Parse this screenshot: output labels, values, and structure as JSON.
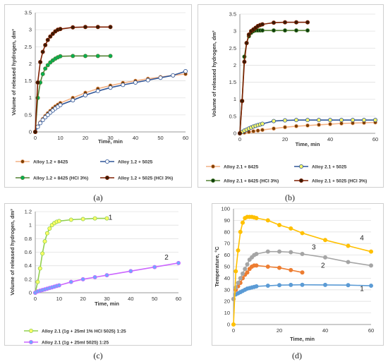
{
  "chart_data": [
    {
      "id": "a",
      "type": "line",
      "caption": "(a)",
      "xlabel": "Time, min",
      "ylabel": "Volume of released hydrogen, dm³",
      "xlim": [
        0,
        60
      ],
      "ylim": [
        0,
        3.5
      ],
      "xticks": [
        0,
        10,
        20,
        30,
        40,
        50,
        60
      ],
      "yticks": [
        0,
        0.5,
        1,
        1.5,
        2,
        2.5,
        3,
        3.5
      ],
      "grid": true,
      "legend_placement": "bottom",
      "series": [
        {
          "name": "Alloy 1.2 + 8425",
          "color": "#f4b183",
          "marker_fill": "#7f3f00",
          "x": [
            0,
            1,
            2,
            3,
            4,
            5,
            6,
            7,
            8,
            9,
            10,
            15,
            20,
            25,
            30,
            35,
            40,
            45,
            50,
            55,
            60
          ],
          "y": [
            0,
            0.16,
            0.28,
            0.38,
            0.47,
            0.55,
            0.62,
            0.69,
            0.75,
            0.8,
            0.85,
            1.0,
            1.15,
            1.27,
            1.36,
            1.44,
            1.5,
            1.56,
            1.61,
            1.66,
            1.7
          ]
        },
        {
          "name": "Alloy 1.2 + 5025",
          "color": "#2f5597",
          "marker_fill": "#ffffff",
          "x": [
            0,
            1,
            2,
            3,
            4,
            5,
            6,
            7,
            8,
            9,
            10,
            15,
            20,
            25,
            30,
            35,
            40,
            45,
            50,
            55,
            60
          ],
          "y": [
            0,
            0.15,
            0.26,
            0.35,
            0.43,
            0.5,
            0.57,
            0.63,
            0.69,
            0.74,
            0.79,
            0.93,
            1.08,
            1.2,
            1.3,
            1.38,
            1.45,
            1.52,
            1.59,
            1.66,
            1.78
          ]
        },
        {
          "name": "Alloy 1.2 + 8425 (HCl 3%)",
          "color": "#548235",
          "marker_fill": "#00b050",
          "x": [
            0,
            1,
            2,
            3,
            4,
            5,
            6,
            7,
            8,
            9,
            10,
            15,
            20,
            25,
            30
          ],
          "y": [
            0,
            1.0,
            1.45,
            1.7,
            1.86,
            1.96,
            2.04,
            2.1,
            2.15,
            2.19,
            2.22,
            2.23,
            2.23,
            2.23,
            2.23
          ]
        },
        {
          "name": "Alloy 1.2 + 5025 (HCl 3%)",
          "color": "#7f1f00",
          "marker_fill": "#3a1a00",
          "x": [
            0,
            1,
            2,
            3,
            4,
            5,
            6,
            7,
            8,
            9,
            10,
            15,
            20,
            25,
            30
          ],
          "y": [
            0,
            1.45,
            2.05,
            2.35,
            2.55,
            2.7,
            2.8,
            2.88,
            2.95,
            3.0,
            3.02,
            3.07,
            3.08,
            3.08,
            3.08
          ]
        }
      ]
    },
    {
      "id": "b",
      "type": "line",
      "caption": "(b)",
      "xlabel": "Time, min",
      "ylabel": "Volume of released hydrogen, dm³",
      "xlim": [
        0,
        60
      ],
      "ylim": [
        0,
        3.5
      ],
      "xticks": [
        0,
        20,
        40,
        60
      ],
      "yticks": [
        0,
        0.5,
        1,
        1.5,
        2,
        2.5,
        3,
        3.5
      ],
      "grid": true,
      "legend_placement": "bottom",
      "series": [
        {
          "name": "Alloy 2.1 + 8425",
          "color": "#f4b183",
          "marker_fill": "#7f3f00",
          "x": [
            0,
            2,
            4,
            6,
            8,
            10,
            15,
            20,
            25,
            30,
            35,
            40,
            45,
            50,
            55,
            60
          ],
          "y": [
            0,
            0.02,
            0.04,
            0.06,
            0.08,
            0.1,
            0.14,
            0.18,
            0.21,
            0.23,
            0.25,
            0.27,
            0.29,
            0.3,
            0.31,
            0.32
          ]
        },
        {
          "name": "Alloy 2.1 + 5025",
          "color": "#2f5597",
          "marker_fill": "#ffff66",
          "x": [
            0,
            1,
            2,
            3,
            4,
            5,
            6,
            7,
            8,
            9,
            10,
            15,
            20,
            25,
            30,
            35,
            40,
            45,
            50,
            55,
            60
          ],
          "y": [
            0,
            0.04,
            0.08,
            0.11,
            0.14,
            0.17,
            0.2,
            0.22,
            0.24,
            0.26,
            0.28,
            0.36,
            0.38,
            0.39,
            0.39,
            0.39,
            0.39,
            0.39,
            0.39,
            0.39,
            0.39
          ]
        },
        {
          "name": "Alloy 2.1 + 8425 (HCl 3%)",
          "color": "#548235",
          "marker_fill": "#0b3d0b",
          "x": [
            0,
            1,
            2,
            3,
            4,
            5,
            6,
            7,
            8,
            9,
            10,
            15,
            20,
            25,
            30
          ],
          "y": [
            0,
            0.95,
            2.25,
            2.65,
            2.85,
            2.95,
            3.0,
            3.02,
            3.02,
            3.02,
            3.02,
            3.02,
            3.02,
            3.02,
            3.02
          ]
        },
        {
          "name": "Alloy 2.1 + 5025 (HCl 3%)",
          "color": "#7f1f00",
          "marker_fill": "#3a1a00",
          "x": [
            0,
            1,
            2,
            3,
            4,
            5,
            6,
            7,
            8,
            9,
            10,
            15,
            20,
            25,
            30
          ],
          "y": [
            0,
            0.95,
            2.1,
            2.65,
            2.9,
            3.0,
            3.05,
            3.1,
            3.15,
            3.18,
            3.2,
            3.25,
            3.26,
            3.26,
            3.26
          ]
        }
      ]
    },
    {
      "id": "c",
      "type": "line",
      "caption": "(c)",
      "xlabel": "Time, min",
      "ylabel": "Volume of released hydrogen, dm³",
      "xlim": [
        0,
        60
      ],
      "ylim": [
        0,
        1.2
      ],
      "xticks": [
        0,
        10,
        20,
        30,
        40,
        50,
        60
      ],
      "yticks": [
        0,
        0.2,
        0.4,
        0.6,
        0.8,
        1,
        1.2
      ],
      "grid": true,
      "legend_placement": "bottom",
      "annotations": [
        {
          "text": "1",
          "x": 31.5,
          "y": 1.08
        },
        {
          "text": "2",
          "x": 55,
          "y": 0.49
        }
      ],
      "series": [
        {
          "name": "Alloy 2.1 (1g + 25ml 1% HCl 5025) 1:25",
          "color": "#92d050",
          "marker_fill": "#ffff66",
          "x": [
            0,
            1,
            2,
            3,
            4,
            5,
            6,
            7,
            8,
            9,
            10,
            15,
            20,
            25,
            30
          ],
          "y": [
            0,
            0.16,
            0.36,
            0.58,
            0.76,
            0.88,
            0.95,
            1.0,
            1.03,
            1.05,
            1.06,
            1.08,
            1.09,
            1.1,
            1.1
          ]
        },
        {
          "name": "Alloy 2.1 (1g + 25ml 5025) 1:25",
          "color": "#cc66ff",
          "marker_fill": "#6fa8ff",
          "x": [
            0,
            1,
            2,
            3,
            4,
            5,
            6,
            7,
            8,
            9,
            10,
            15,
            20,
            25,
            30,
            40,
            50,
            60
          ],
          "y": [
            0,
            0.02,
            0.03,
            0.04,
            0.05,
            0.06,
            0.07,
            0.08,
            0.09,
            0.1,
            0.11,
            0.16,
            0.2,
            0.23,
            0.26,
            0.32,
            0.38,
            0.44
          ]
        }
      ]
    },
    {
      "id": "d",
      "type": "line",
      "caption": "(d)",
      "xlabel": "Time, min",
      "ylabel": "Temperature, °C",
      "xlim": [
        0,
        60
      ],
      "ylim": [
        0,
        100
      ],
      "xticks": [
        0,
        20,
        40,
        60
      ],
      "yticks": [
        0,
        10,
        20,
        30,
        40,
        50,
        60,
        70,
        80,
        90,
        100
      ],
      "grid": true,
      "legend_placement": "none",
      "annotations": [
        {
          "text": "1",
          "x": 56,
          "y": 29
        },
        {
          "text": "2",
          "x": 39,
          "y": 49
        },
        {
          "text": "3",
          "x": 35,
          "y": 65
        },
        {
          "text": "4",
          "x": 56,
          "y": 73
        }
      ],
      "series": [
        {
          "name": "",
          "label": "1",
          "color": "#5b9bd5",
          "marker_fill": "#5b9bd5",
          "x": [
            0,
            1,
            2,
            3,
            4,
            5,
            6,
            7,
            8,
            9,
            10,
            15,
            20,
            25,
            30,
            40,
            50,
            60
          ],
          "y": [
            22,
            26,
            27,
            28,
            29,
            30,
            31,
            31.5,
            32,
            32.5,
            33,
            33.5,
            34,
            34.2,
            34.3,
            34.2,
            34,
            33.5
          ]
        },
        {
          "name": "",
          "label": "2",
          "color": "#ed7d31",
          "marker_fill": "#ed7d31",
          "x": [
            0,
            1,
            2,
            3,
            4,
            5,
            6,
            7,
            8,
            9,
            10,
            15,
            20,
            25,
            30
          ],
          "y": [
            22,
            30,
            33,
            36,
            40,
            43,
            45,
            48,
            50,
            51,
            51,
            50,
            49,
            47,
            45
          ]
        },
        {
          "name": "",
          "label": "3",
          "color": "#a5a5a5",
          "marker_fill": "#a5a5a5",
          "x": [
            0,
            1,
            2,
            3,
            4,
            5,
            6,
            7,
            8,
            9,
            10,
            15,
            20,
            25,
            30,
            40,
            50,
            60
          ],
          "y": [
            22,
            32,
            36,
            40,
            44,
            48,
            52,
            56,
            58,
            60,
            61,
            63,
            63,
            62.5,
            61,
            58,
            54,
            51
          ]
        },
        {
          "name": "",
          "label": "4",
          "color": "#ffc000",
          "marker_fill": "#ffc000",
          "x": [
            0,
            1,
            2,
            3,
            4,
            5,
            6,
            7,
            8,
            9,
            10,
            15,
            20,
            25,
            30,
            40,
            50,
            60
          ],
          "y": [
            0,
            46,
            64,
            80,
            88,
            92,
            93,
            93,
            93,
            92.5,
            92,
            90,
            86,
            83,
            79,
            73,
            68,
            63
          ]
        }
      ]
    }
  ]
}
